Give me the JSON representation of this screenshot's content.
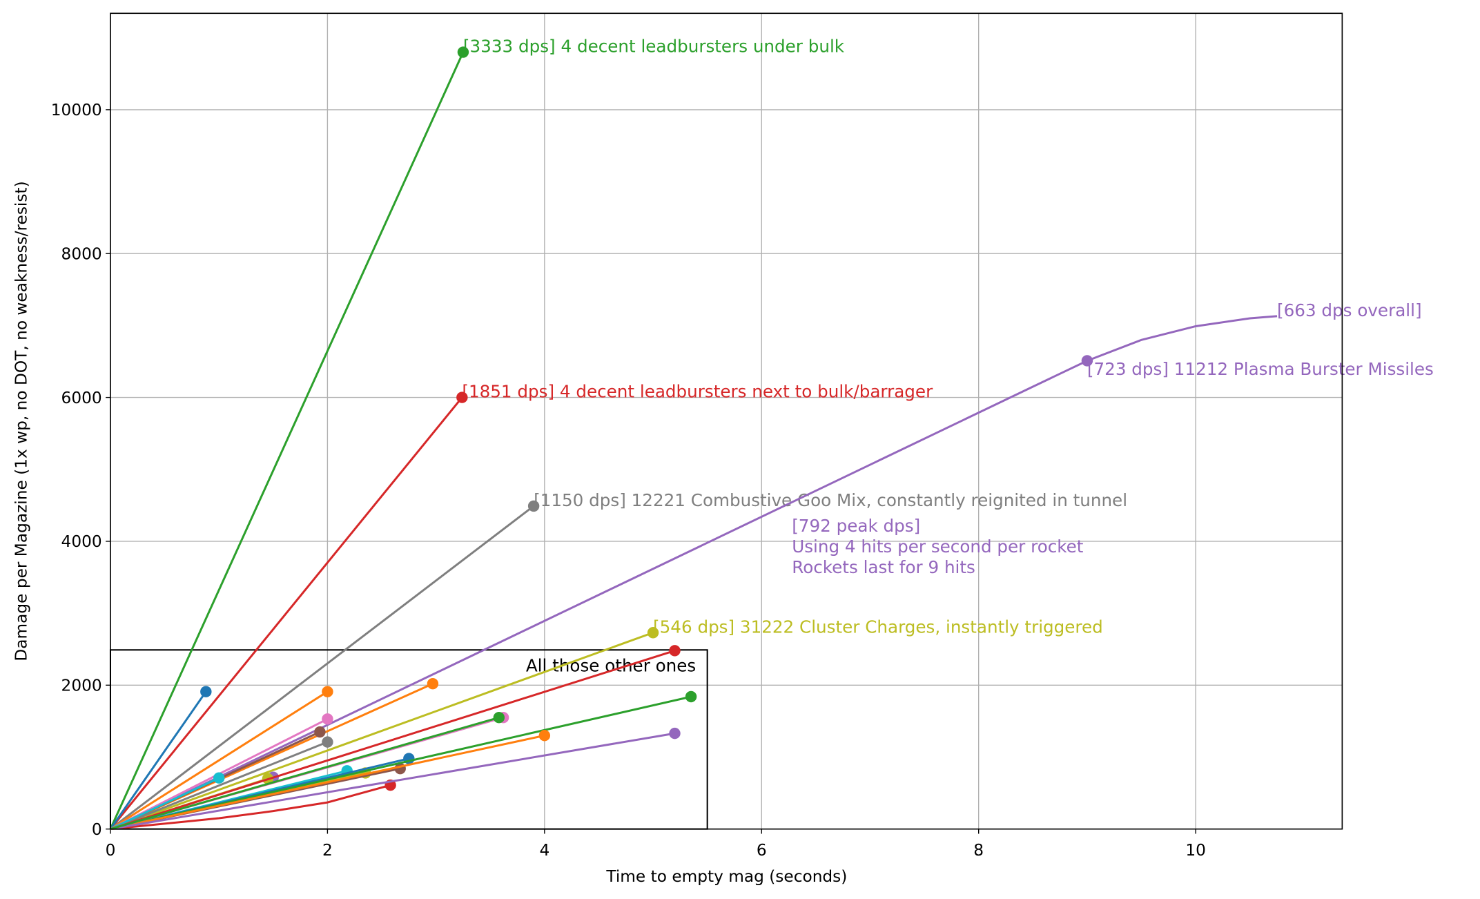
{
  "chart_data": {
    "type": "line",
    "x_label": "Time to empty mag (seconds)",
    "y_label": "Damage per Magazine (1x wp, no DOT, no weakness/resist)",
    "xlim": [
      0,
      11.35
    ],
    "ylim": [
      0,
      11340
    ],
    "xticks": [
      0,
      2,
      4,
      6,
      8,
      10
    ],
    "yticks": [
      0,
      2000,
      4000,
      6000,
      8000,
      10000
    ],
    "grid": true,
    "box": {
      "xlim": [
        0,
        5.5
      ],
      "ylim": [
        0,
        2490
      ],
      "label": "All those other ones"
    },
    "annotation": [
      "[792 peak dps]",
      "Using 4 hits per second per rocket",
      "Rockets last for 9 hits"
    ],
    "series": [
      {
        "color": "#2ca02c",
        "x": [
          0,
          3.25
        ],
        "values": [
          0,
          10800
        ],
        "label": "[3333 dps] 4 decent leadbursters under bulk"
      },
      {
        "color": "#d62728",
        "x": [
          0,
          3.24
        ],
        "values": [
          0,
          6000
        ],
        "label": "[1851 dps] 4 decent leadbursters next to bulk/barrager"
      },
      {
        "color": "#7f7f7f",
        "x": [
          0,
          3.9
        ],
        "values": [
          0,
          4490
        ],
        "label": "[1150 dps] 12221 Combustive Goo Mix, constantly reignited in tunnel"
      },
      {
        "color": "#bcbd22",
        "x": [
          0,
          5.0
        ],
        "values": [
          0,
          2730
        ],
        "label": "[546 dps] 31222 Cluster Charges, instantly triggered"
      },
      {
        "color": "#9467bd",
        "x": [
          0,
          8.5,
          9,
          9.5,
          10,
          10.5,
          10.75
        ],
        "values": [
          0,
          6150,
          6510,
          6800,
          6990,
          7100,
          7130
        ],
        "marker_index": 2,
        "label": "[723 dps] 11212 Plasma Burster Missiles",
        "end_label": "[663 dps overall]"
      },
      {
        "color": "#1f77b4",
        "x": [
          0,
          0.88
        ],
        "values": [
          0,
          1910
        ]
      },
      {
        "color": "#ff7f0e",
        "x": [
          0,
          2.0
        ],
        "values": [
          0,
          1910
        ]
      },
      {
        "color": "#ff7f0e",
        "x": [
          0,
          2.97
        ],
        "values": [
          0,
          2020
        ]
      },
      {
        "color": "#e377c2",
        "x": [
          0,
          2.0
        ],
        "values": [
          0,
          1530
        ]
      },
      {
        "color": "#8c564b",
        "x": [
          0,
          1.93
        ],
        "values": [
          0,
          1350
        ]
      },
      {
        "color": "#7f7f7f",
        "x": [
          0,
          2.0
        ],
        "values": [
          0,
          1210
        ]
      },
      {
        "color": "#17becf",
        "x": [
          0,
          1.0
        ],
        "values": [
          0,
          710
        ]
      },
      {
        "color": "#9467bd",
        "x": [
          0,
          1.5
        ],
        "values": [
          0,
          720
        ]
      },
      {
        "color": "#bcbd22",
        "x": [
          0,
          1.45
        ],
        "values": [
          0,
          700
        ]
      },
      {
        "color": "#17becf",
        "x": [
          0,
          2.18
        ],
        "values": [
          0,
          810
        ]
      },
      {
        "color": "#bcbd22",
        "x": [
          0,
          2.35
        ],
        "values": [
          0,
          780
        ]
      },
      {
        "color": "#1f77b4",
        "x": [
          0,
          2.75
        ],
        "values": [
          0,
          980
        ]
      },
      {
        "color": "#8c564b",
        "x": [
          0,
          2.67
        ],
        "values": [
          0,
          840
        ]
      },
      {
        "color": "#d62728",
        "x": [
          0,
          1,
          1.5,
          2,
          2.58
        ],
        "values": [
          0,
          150,
          250,
          370,
          610
        ]
      },
      {
        "color": "#d62728",
        "x": [
          0,
          5.2
        ],
        "values": [
          0,
          2480
        ]
      },
      {
        "color": "#2ca02c",
        "x": [
          0,
          5.35
        ],
        "values": [
          0,
          1840
        ]
      },
      {
        "color": "#ff7f0e",
        "x": [
          0,
          4.0
        ],
        "values": [
          0,
          1300
        ]
      },
      {
        "color": "#9467bd",
        "x": [
          0,
          5.2
        ],
        "values": [
          0,
          1330
        ]
      },
      {
        "color": "#e377c2",
        "x": [
          0,
          3.62
        ],
        "values": [
          0,
          1550
        ]
      },
      {
        "color": "#2ca02c",
        "x": [
          0,
          3.58
        ],
        "values": [
          0,
          1550
        ]
      }
    ]
  }
}
